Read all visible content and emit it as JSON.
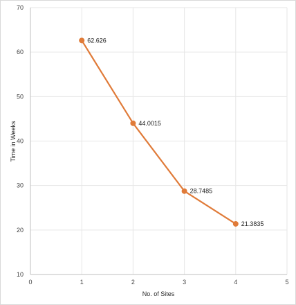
{
  "chart_data": {
    "type": "line",
    "x": [
      1,
      2,
      3,
      4
    ],
    "series": [
      {
        "values": [
          62.626,
          44.0015,
          28.7485,
          21.3835
        ]
      }
    ],
    "data_labels": [
      "62.626",
      "44.0015",
      "28.7485",
      "21.3835"
    ],
    "xlabel": "No. of Sites",
    "ylabel": "Time in Weeks",
    "xlim": [
      0,
      5
    ],
    "ylim": [
      10,
      70
    ],
    "xticks": [
      "0",
      "1",
      "2",
      "3",
      "4",
      "5"
    ],
    "yticks": [
      "10",
      "20",
      "30",
      "40",
      "50",
      "60",
      "70"
    ],
    "grid": true,
    "line_color": "#E07B39",
    "marker_color": "#E07B39",
    "grid_color": "#e6e6e6"
  }
}
